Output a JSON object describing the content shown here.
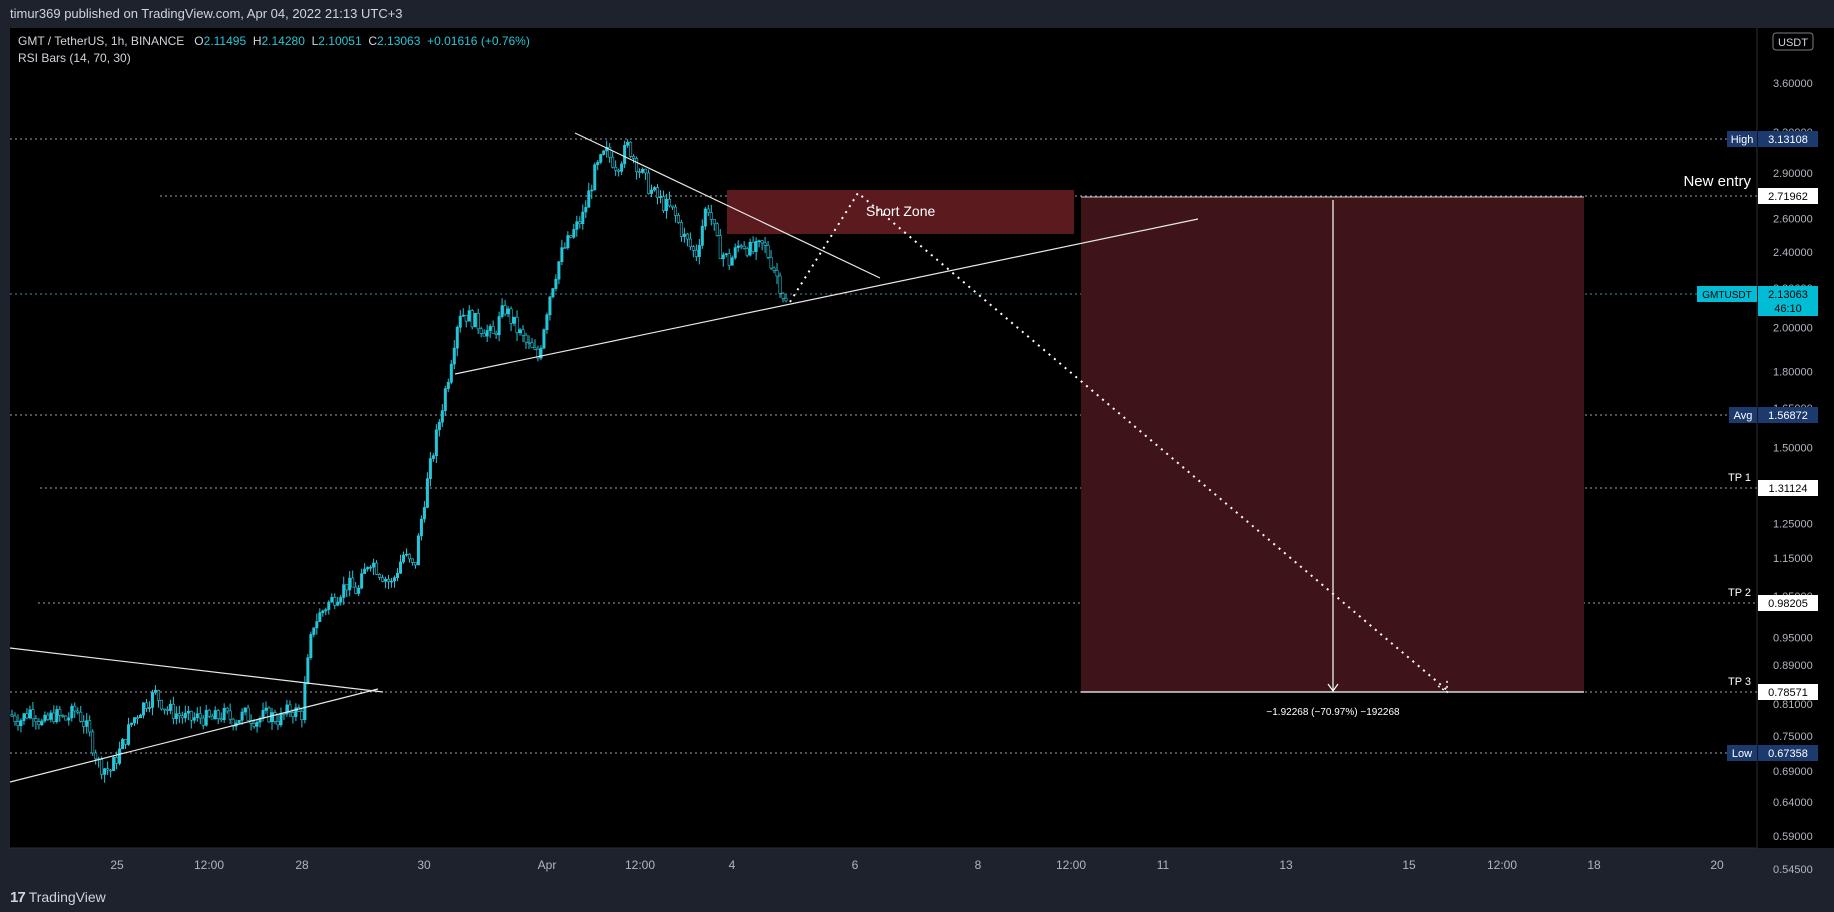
{
  "header": {
    "published_text": "timur369 published on TradingView.com, Apr 04, 2022 21:13 UTC+3"
  },
  "legend": {
    "symbol": "GMT / TetherUS, 1h, BINANCE",
    "o_label": "O",
    "o_value": "2.11495",
    "h_label": "H",
    "h_value": "2.14280",
    "l_label": "L",
    "l_value": "2.10051",
    "c_label": "C",
    "c_value": "2.13063",
    "change": "+0.01616 (+0.76%)",
    "indicator": "RSI Bars (14, 70, 30)"
  },
  "footer": {
    "brand": "TradingView",
    "logo_mark": "17"
  },
  "colors": {
    "background": "#000000",
    "frame": "#1e222d",
    "candle": "#26c6da",
    "zone": "#5a1a1e",
    "target_box": "#3f1418",
    "badge": "#1c3a6e",
    "price_badge": "#00bcd4"
  },
  "chart_data": {
    "type": "candlestick",
    "title": "GMT / TetherUS, 1h, BINANCE",
    "currency_label": "USDT",
    "y_scale": "log",
    "ylim": [
      0.52,
      3.9
    ],
    "y_ticks": [
      "3.60000",
      "3.20000",
      "2.90000",
      "2.60000",
      "2.40000",
      "2.20000",
      "2.00000",
      "1.80000",
      "1.65000",
      "1.50000",
      "1.35000",
      "1.25000",
      "1.15000",
      "1.05000",
      "0.95000",
      "0.89000",
      "0.81000",
      "0.75000",
      "0.69000",
      "0.64000",
      "0.59000",
      "0.54500"
    ],
    "x_ticks": [
      "25",
      "12:00",
      "28",
      "30",
      "Apr",
      "12:00",
      "4",
      "6",
      "8",
      "12:00",
      "11",
      "13",
      "15",
      "12:00",
      "18",
      "20"
    ],
    "price_path": [
      0.79,
      0.78,
      0.8,
      0.77,
      0.79,
      0.78,
      0.8,
      0.76,
      0.7,
      0.69,
      0.73,
      0.78,
      0.81,
      0.83,
      0.8,
      0.79,
      0.78,
      0.785,
      0.78,
      0.79,
      0.78,
      0.79,
      0.78,
      0.79,
      0.78,
      0.8,
      0.79,
      0.98,
      1.02,
      1.05,
      1.08,
      1.06,
      1.15,
      1.11,
      1.08,
      1.16,
      1.12,
      1.35,
      1.55,
      1.78,
      2.08,
      2.05,
      2.0,
      1.96,
      2.1,
      2.0,
      1.92,
      1.86,
      2.16,
      2.38,
      2.5,
      2.62,
      2.9,
      3.05,
      2.95,
      3.1,
      2.92,
      2.78,
      2.7,
      2.64,
      2.48,
      2.38,
      2.7,
      2.42,
      2.34,
      2.46,
      2.4,
      2.44,
      2.3,
      2.12
    ],
    "price_levels": [
      {
        "name": "High",
        "value": "3.13108"
      },
      {
        "name": "New entry",
        "value": "2.71962"
      },
      {
        "name": "GMTUSDT",
        "value": "2.13063",
        "countdown": "46:10"
      },
      {
        "name": "Avg",
        "value": "1.56872"
      },
      {
        "name": "TP 1",
        "value": "1.31124"
      },
      {
        "name": "TP 2",
        "value": "0.98205"
      },
      {
        "name": "TP 3",
        "value": "0.78571"
      },
      {
        "name": "Low",
        "value": "0.67358"
      }
    ],
    "annotations": {
      "short_zone": "Short Zone",
      "new_entry": "New entry",
      "measure": "−1.92268 (−70.97%) −192268"
    }
  }
}
